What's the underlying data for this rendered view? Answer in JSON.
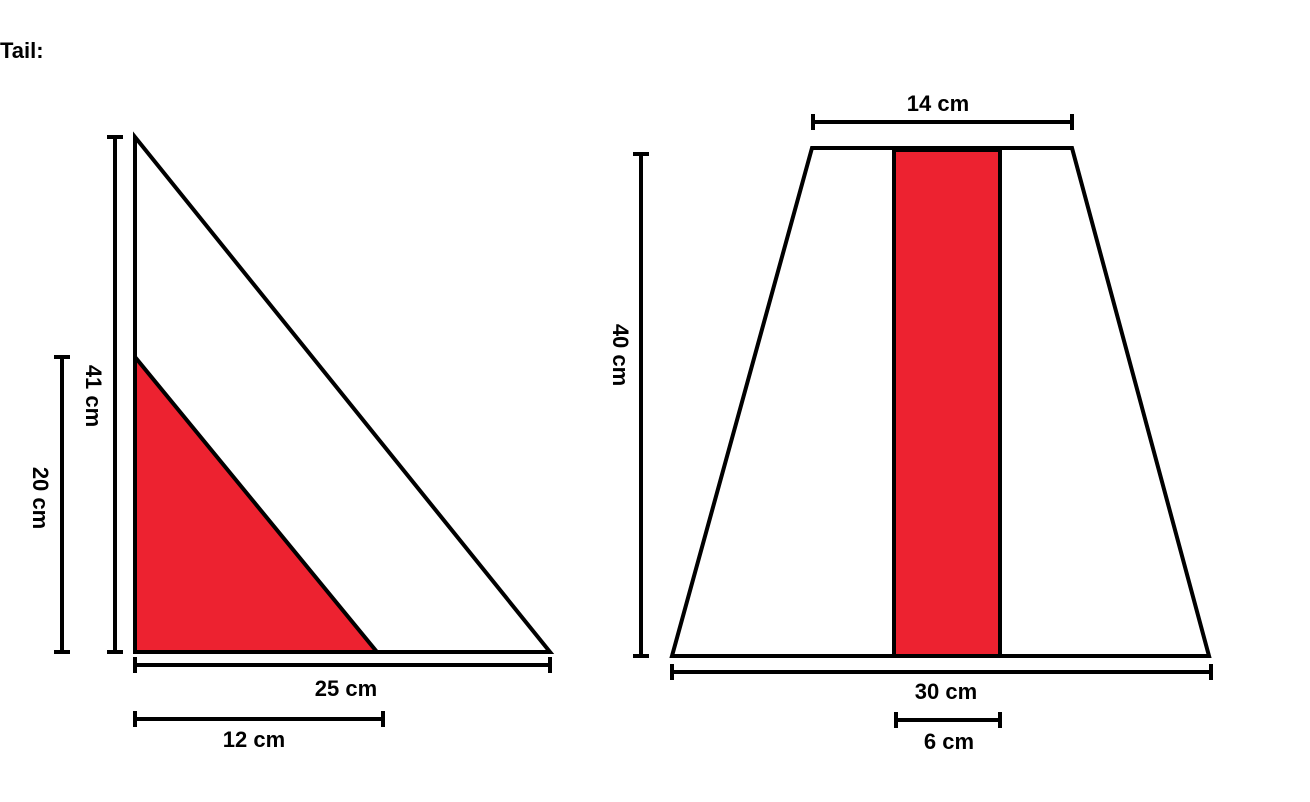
{
  "heading": "Tail:",
  "colors": {
    "fill_red": "#ed2230",
    "stroke": "#000000",
    "background": "#ffffff"
  },
  "triangle_diagram": {
    "outer_height_label": "41 cm",
    "inner_height_label": "20 cm",
    "outer_base_label": "25 cm",
    "inner_base_label": "12 cm",
    "outer_height_cm": 41,
    "inner_height_cm": 20,
    "outer_base_cm": 25,
    "inner_base_cm": 12
  },
  "trapezoid_diagram": {
    "top_width_label": "14 cm",
    "height_label": "40 cm",
    "bottom_width_label": "30 cm",
    "stripe_width_label": "6 cm",
    "top_width_cm": 14,
    "height_cm": 40,
    "bottom_width_cm": 30,
    "stripe_width_cm": 6
  }
}
